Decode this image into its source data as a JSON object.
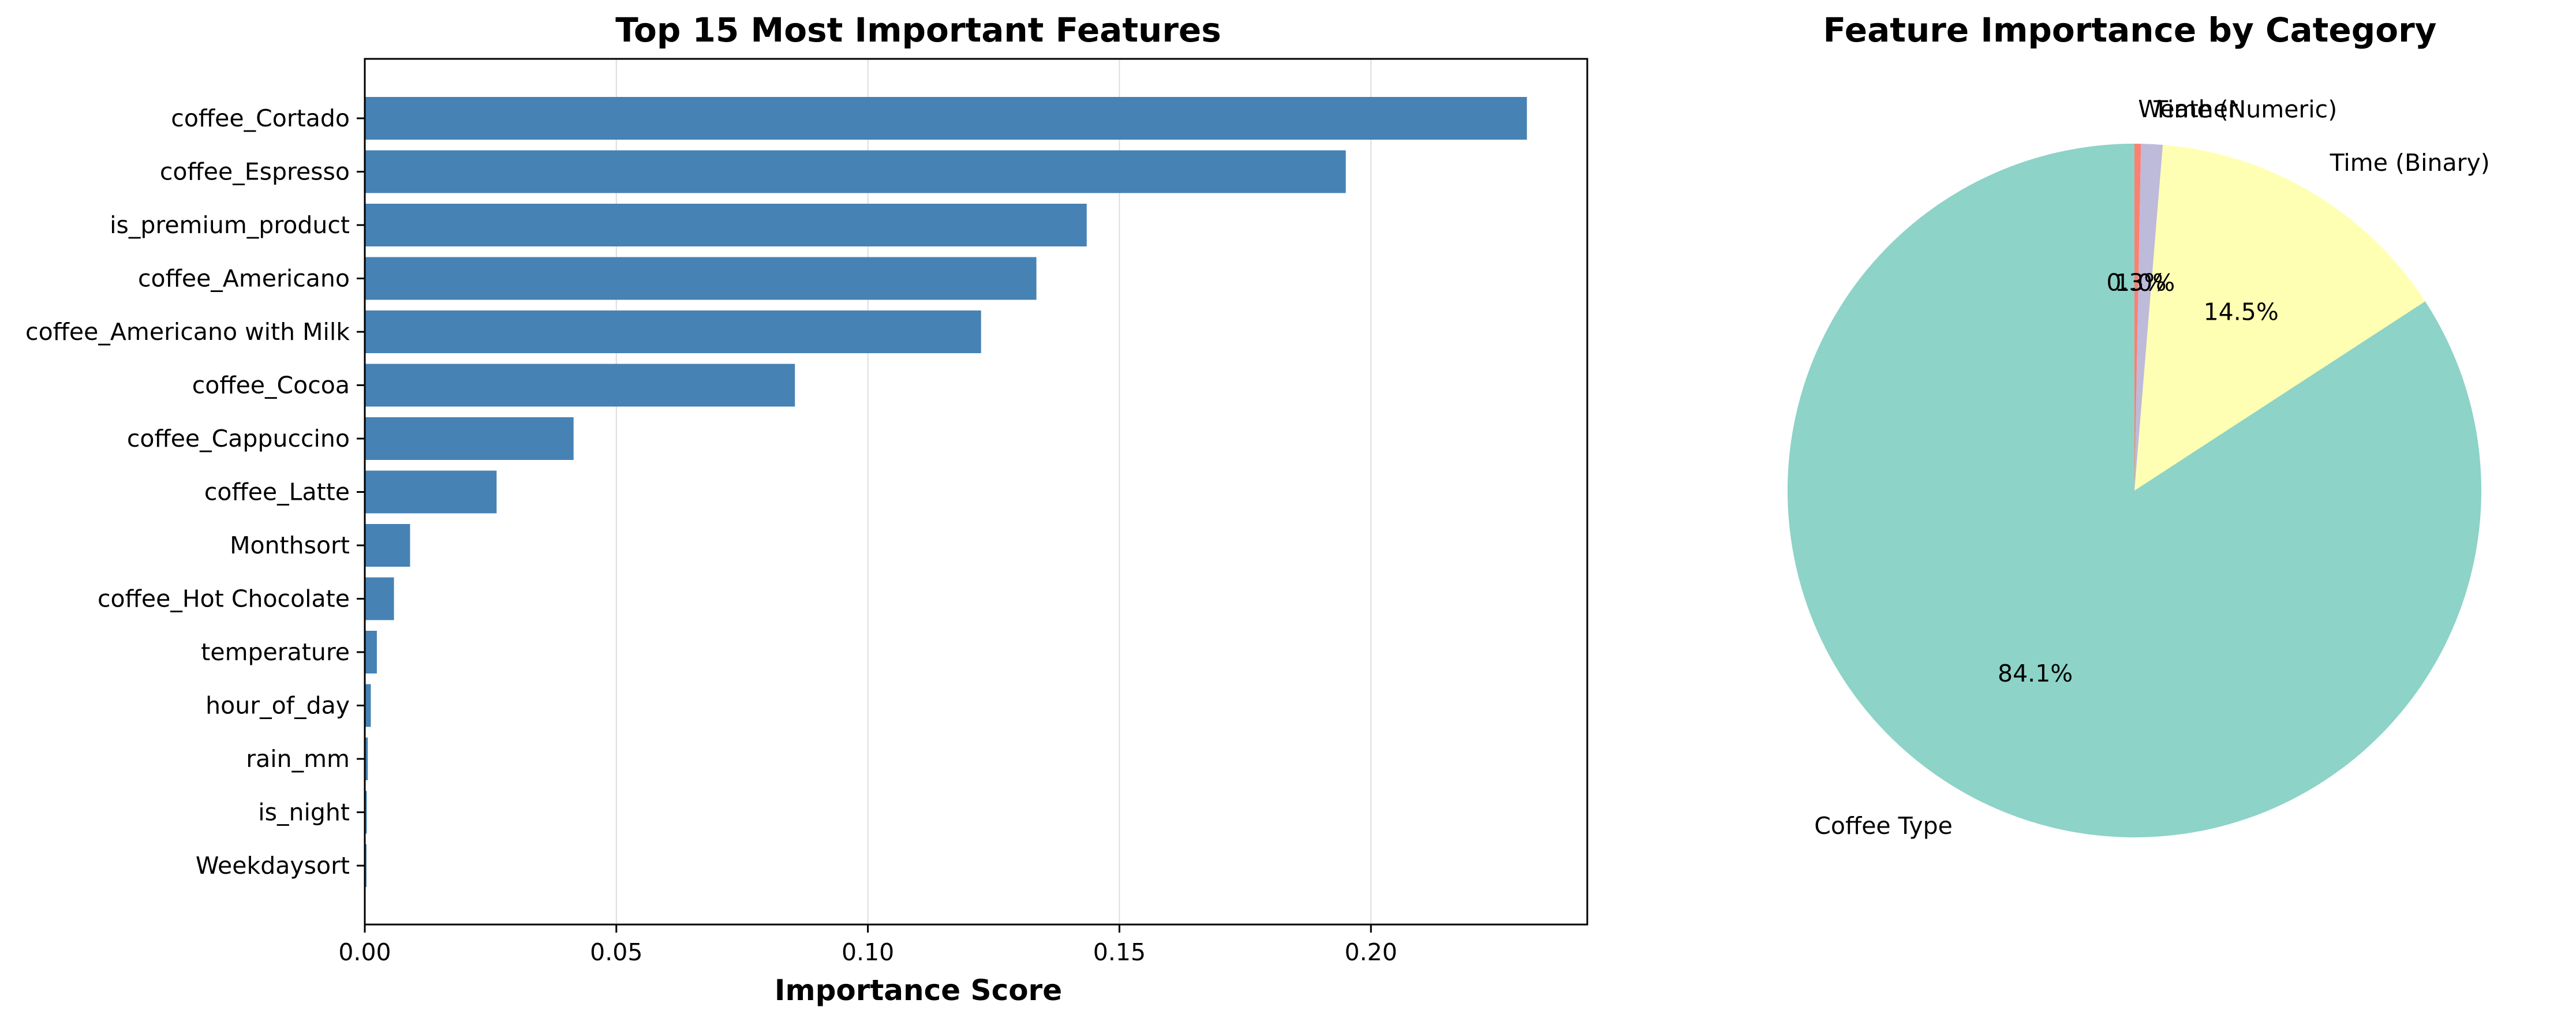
{
  "chart_data": [
    {
      "type": "bar",
      "orientation": "horizontal",
      "title": "Top 15 Most Important Features",
      "xlabel": "Importance Score",
      "ylabel": "",
      "xlim": [
        0,
        0.243
      ],
      "xticks": [
        0.0,
        0.05,
        0.1,
        0.15,
        0.2
      ],
      "xtick_labels": [
        "0.00",
        "0.05",
        "0.10",
        "0.15",
        "0.20"
      ],
      "grid": "vertical",
      "bar_color": "#4682b4",
      "categories": [
        "coffee_Cortado",
        "coffee_Espresso",
        "is_premium_product",
        "coffee_Americano",
        "coffee_Americano with Milk",
        "coffee_Cocoa",
        "coffee_Cappuccino",
        "coffee_Latte",
        "Monthsort",
        "coffee_Hot Chocolate",
        "temperature",
        "hour_of_day",
        "rain_mm",
        "is_night",
        "Weekdaysort"
      ],
      "values": [
        0.231,
        0.195,
        0.1435,
        0.1335,
        0.1225,
        0.0855,
        0.0415,
        0.0262,
        0.009,
        0.0058,
        0.0024,
        0.0012,
        0.0006,
        0.0004,
        0.0003
      ]
    },
    {
      "type": "pie",
      "title": "Feature Importance by Category",
      "start_angle": 90,
      "direction": "counterclockwise",
      "slices": [
        {
          "label": "Coffee Type",
          "value": 84.1,
          "pct_label": "84.1%",
          "color": "#8dd3c7"
        },
        {
          "label": "Time (Binary)",
          "value": 14.5,
          "pct_label": "14.5%",
          "color": "#ffffb3"
        },
        {
          "label": "Time (Numeric)",
          "value": 1.0,
          "pct_label": "1.0%",
          "color": "#bebada"
        },
        {
          "label": "Weather",
          "value": 0.3,
          "pct_label": "0.3%",
          "color": "#fb8072"
        }
      ]
    }
  ]
}
